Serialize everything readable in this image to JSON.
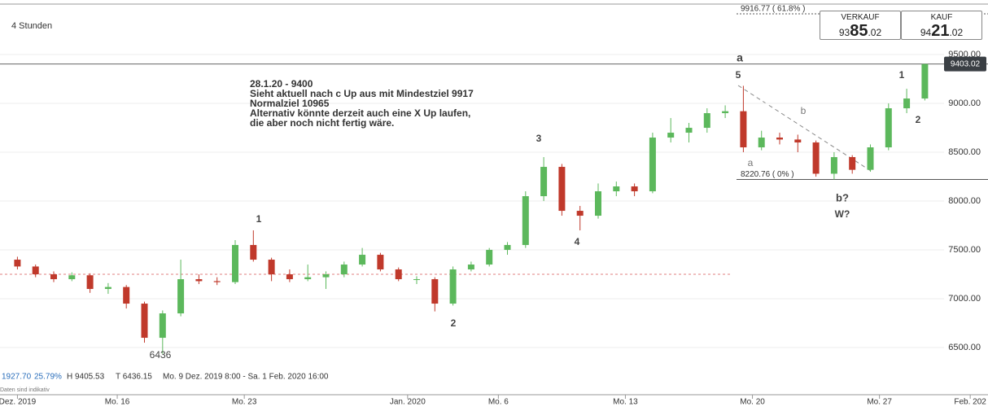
{
  "header": {
    "timeframe": "4 Stunden"
  },
  "quote": {
    "sell": {
      "label": "VERKAUF",
      "prefix": "93",
      "main": "85",
      "suffix": ".02"
    },
    "buy": {
      "label": "KAUF",
      "prefix": "94",
      "main": "21",
      "suffix": ".02"
    }
  },
  "chart_data": {
    "type": "candlestick",
    "x": [
      1,
      2,
      3,
      4,
      5,
      6,
      7,
      8,
      9,
      10,
      11,
      12,
      13,
      14,
      15,
      16,
      17,
      18,
      19,
      20,
      21,
      22,
      23,
      24,
      25,
      26,
      27,
      28,
      29,
      30,
      31,
      32,
      33,
      34,
      35,
      36,
      37,
      38,
      39,
      40,
      41,
      42,
      43,
      44,
      45,
      46,
      47,
      48,
      49,
      50,
      51
    ],
    "open": [
      7400,
      7330,
      7250,
      7200,
      7240,
      7100,
      7120,
      6950,
      6600,
      6850,
      7200,
      7180,
      7170,
      7550,
      7400,
      7250,
      7200,
      7220,
      7250,
      7350,
      7450,
      7300,
      7200,
      7200,
      6950,
      7300,
      7350,
      7500,
      7550,
      8050,
      8350,
      7900,
      7850,
      8100,
      8150,
      8100,
      8650,
      8700,
      8750,
      8900,
      8920,
      8550,
      8650,
      8630,
      8600,
      8280,
      8450,
      8320,
      8550,
      8950,
      9050
    ],
    "high": [
      7430,
      7350,
      7280,
      7270,
      7260,
      7160,
      7140,
      6970,
      6880,
      7400,
      7250,
      7220,
      7600,
      7700,
      7420,
      7300,
      7350,
      7280,
      7380,
      7520,
      7470,
      7320,
      7230,
      7220,
      7330,
      7380,
      7520,
      7580,
      8100,
      8450,
      8380,
      7950,
      8180,
      8200,
      8180,
      8700,
      8850,
      8800,
      8950,
      8980,
      9180,
      8720,
      8700,
      8680,
      8620,
      8500,
      8470,
      8580,
      9000,
      9150,
      9405.53
    ],
    "low": [
      7300,
      7220,
      7170,
      7180,
      7060,
      7050,
      6900,
      6550,
      6436,
      6820,
      7150,
      7140,
      7150,
      7380,
      7180,
      7170,
      7180,
      7100,
      7220,
      7330,
      7280,
      7180,
      7150,
      6870,
      6930,
      7280,
      7330,
      7450,
      7520,
      8000,
      7850,
      7700,
      7820,
      8050,
      8050,
      8080,
      8600,
      8600,
      8700,
      8850,
      8500,
      8520,
      8580,
      8500,
      8250,
      8220,
      8280,
      8300,
      8520,
      8900,
      9030
    ],
    "close": [
      7330,
      7250,
      7200,
      7240,
      7100,
      7120,
      6950,
      6600,
      6850,
      7200,
      7180,
      7170,
      7550,
      7400,
      7250,
      7200,
      7220,
      7250,
      7350,
      7450,
      7300,
      7200,
      7200,
      6950,
      7300,
      7350,
      7500,
      7550,
      8050,
      8350,
      7900,
      7850,
      8100,
      8150,
      8100,
      8650,
      8700,
      8750,
      8900,
      8920,
      8550,
      8650,
      8630,
      8600,
      8280,
      8450,
      8320,
      8550,
      8950,
      9050,
      9403.02
    ],
    "up_color": "#5cb85c",
    "down_color": "#c0392b",
    "xlim": [
      0.04,
      54.48
    ],
    "xticks": [
      {
        "value": 1,
        "label": "Dez. 2019"
      },
      {
        "value": 6.5,
        "label": "Mo. 16"
      },
      {
        "value": 13.5,
        "label": "Mo. 23"
      },
      {
        "value": 22.5,
        "label": "Jan. 2020"
      },
      {
        "value": 27.5,
        "label": "Mo. 6"
      },
      {
        "value": 34.5,
        "label": "Mo. 13"
      },
      {
        "value": 41.5,
        "label": "Mo. 20"
      },
      {
        "value": 48.5,
        "label": "Mo. 27"
      },
      {
        "value": 53.5,
        "label": "Feb. 202"
      }
    ],
    "ylim": [
      6042,
      10017
    ],
    "yticks": [
      {
        "value": 6500,
        "label": "6500.00"
      },
      {
        "value": 7000,
        "label": "7000.00"
      },
      {
        "value": 7500,
        "label": "7500.00"
      },
      {
        "value": 8000,
        "label": "8000.00"
      },
      {
        "value": 8500,
        "label": "8500.00"
      },
      {
        "value": 9000,
        "label": "9000.00"
      },
      {
        "value": 9500,
        "label": "9500.00"
      }
    ],
    "grid": true,
    "last_price": {
      "value": 9403.02,
      "label": "9403.02"
    },
    "reference_line": 7250,
    "levels": [
      {
        "value": 9916.77,
        "label": "9916.77 ( 61.8% )"
      },
      {
        "value": 8220.76,
        "label": "8220.76 ( 0% )"
      }
    ],
    "annotation": [
      "28.1.20 - 9400",
      "Sieht aktuell nach c Up aus mit Mindestziel 9917",
      "Normalziel 10965",
      "Alternativ könnte derzeit auch eine X Up laufen,",
      "die aber noch nicht fertig wäre."
    ],
    "wave_labels": [
      "1",
      "2",
      "3",
      "4",
      "5",
      "a",
      "b",
      "1",
      "2",
      "b?",
      "W?",
      "6436",
      "a"
    ],
    "stats": {
      "change": "1927.70",
      "change_pct": "25.79%",
      "high": "H 9405.53",
      "low": "T 6436.15",
      "range": "Mo. 9 Dez. 2019 8:00 - Sa. 1 Feb. 2020 16:00"
    },
    "footnote": "Daten sind indikativ"
  }
}
